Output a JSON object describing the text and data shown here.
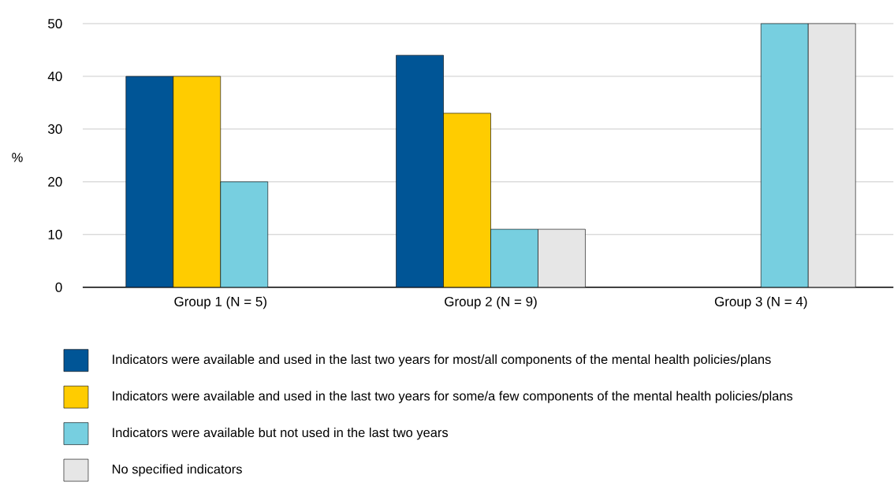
{
  "chart_data": {
    "type": "bar",
    "ylabel": "%",
    "categories": [
      "Group 1 (N = 5)",
      "Group 2 (N = 9)",
      "Group 3 (N = 4)"
    ],
    "series": [
      {
        "name": "Indicators were available and used in the last two years for most/all components of the mental health policies/plans",
        "color": "#005596",
        "values": [
          40,
          44,
          null
        ]
      },
      {
        "name": "Indicators were available and used in the last two years for some/a few components of the mental health policies/plans",
        "color": "#ffcc00",
        "values": [
          40,
          33,
          null
        ]
      },
      {
        "name": "Indicators were available but not used in the last two years",
        "color": "#77cfe0",
        "values": [
          20,
          11,
          50
        ]
      },
      {
        "name": "No specified indicators",
        "color": "#e6e6e6",
        "values": [
          null,
          11,
          50
        ]
      }
    ],
    "ylim": [
      0,
      50
    ],
    "yticks": [
      0,
      10,
      20,
      30,
      40,
      50
    ],
    "grid": "y",
    "legend": "bottom"
  }
}
